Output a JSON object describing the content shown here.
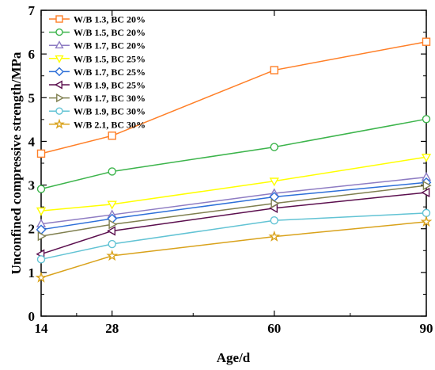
{
  "chart_data": {
    "type": "line",
    "xlabel": "Age/d",
    "ylabel": "Unconfined compressive strength/MPa",
    "xlim": [
      14,
      90
    ],
    "ylim": [
      0,
      7
    ],
    "x": [
      14,
      28,
      60,
      90
    ],
    "xticks": [
      "14",
      "28",
      "60",
      "90"
    ],
    "yticks": [
      "0",
      "1",
      "2",
      "3",
      "4",
      "5",
      "6",
      "7"
    ],
    "grid": false,
    "legend_position": "top-left",
    "series": [
      {
        "name": "W/B 1.3, BC 20%",
        "values": [
          3.72,
          4.13,
          5.63,
          6.28
        ],
        "color": "#ff7f27",
        "marker": "square"
      },
      {
        "name": "W/B 1.5, BC 20%",
        "values": [
          2.91,
          3.31,
          3.87,
          4.51
        ],
        "color": "#3cb44b",
        "marker": "circle"
      },
      {
        "name": "W/B 1.7, BC 20%",
        "values": [
          2.11,
          2.32,
          2.81,
          3.18
        ],
        "color": "#8e7cc3",
        "marker": "triangle-up"
      },
      {
        "name": "W/B 1.5, BC 25%",
        "values": [
          2.41,
          2.56,
          3.09,
          3.64
        ],
        "color": "#ffff00",
        "marker": "triangle-down"
      },
      {
        "name": "W/B 1.7, BC 25%",
        "values": [
          1.98,
          2.23,
          2.73,
          3.06
        ],
        "color": "#2d6fd8",
        "marker": "diamond"
      },
      {
        "name": "W/B 1.9, BC 25%",
        "values": [
          1.42,
          1.95,
          2.47,
          2.83
        ],
        "color": "#5b0f4e",
        "marker": "triangle-left"
      },
      {
        "name": "W/B 1.7, BC 30%",
        "values": [
          1.83,
          2.1,
          2.58,
          2.99
        ],
        "color": "#7f7f4f",
        "marker": "triangle-right"
      },
      {
        "name": "W/B 1.9, BC 30%",
        "values": [
          1.3,
          1.65,
          2.19,
          2.36
        ],
        "color": "#62c3d4",
        "marker": "circle"
      },
      {
        "name": "W/B 2.1, BC 30%",
        "values": [
          0.88,
          1.38,
          1.82,
          2.16
        ],
        "color": "#d9a21b",
        "marker": "star"
      }
    ]
  }
}
